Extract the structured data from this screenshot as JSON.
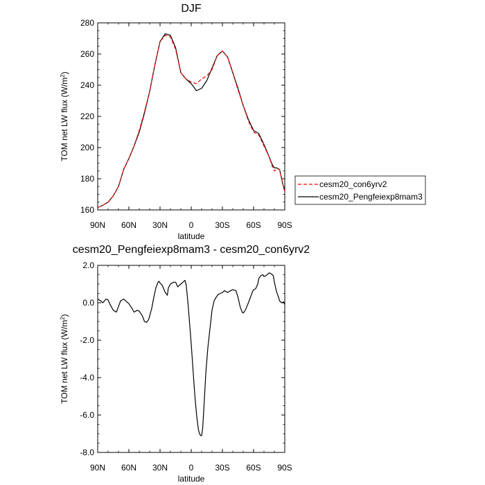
{
  "chart_data": [
    {
      "type": "line",
      "title": "DJF",
      "xlabel": "latitude",
      "ylabel": "TOM net LW flux (W/m",
      "ylabel_sup": "2",
      "ylabel_end": ")",
      "xlim": [
        -90,
        90
      ],
      "ylim": [
        160,
        280
      ],
      "x_ticks": [
        -90,
        -60,
        -30,
        0,
        30,
        60,
        90
      ],
      "x_tick_labels": [
        "90N",
        "60N",
        "30N",
        "0",
        "30S",
        "60S",
        "90S"
      ],
      "y_ticks": [
        160,
        180,
        200,
        220,
        240,
        260,
        280
      ],
      "y_tick_labels": [
        "160",
        "180",
        "200",
        "220",
        "240",
        "260",
        "280"
      ],
      "grid": false,
      "legend_position": "right",
      "series": [
        {
          "name": "cesm20_con6yrv2",
          "color": "#ff0000",
          "dash": "dashed",
          "x": [
            -90,
            -85,
            -80,
            -75,
            -70,
            -65,
            -60,
            -55,
            -50,
            -45,
            -40,
            -35,
            -30,
            -25,
            -20,
            -15,
            -10,
            -5,
            0,
            5,
            10,
            15,
            20,
            25,
            30,
            35,
            40,
            45,
            50,
            55,
            60,
            65,
            70,
            75,
            78,
            80,
            82,
            85,
            88,
            90
          ],
          "values": [
            161.5,
            163,
            165,
            169,
            175,
            186,
            193,
            201,
            211,
            223,
            236,
            253,
            268,
            272,
            271,
            263,
            248,
            244,
            242,
            241,
            244,
            246,
            250,
            259,
            262,
            258,
            248,
            237,
            227,
            217,
            210,
            208,
            201,
            194,
            188,
            185,
            186,
            186,
            177,
            172
          ]
        },
        {
          "name": "cesm20_Pengfeiexp8mam3",
          "color": "#000000",
          "dash": "solid",
          "x": [
            -90,
            -85,
            -80,
            -75,
            -70,
            -65,
            -60,
            -55,
            -50,
            -45,
            -40,
            -35,
            -30,
            -25,
            -20,
            -15,
            -10,
            -5,
            0,
            5,
            10,
            15,
            20,
            25,
            30,
            35,
            40,
            45,
            50,
            55,
            60,
            65,
            70,
            75,
            78,
            80,
            82,
            85,
            88,
            90
          ],
          "values": [
            161.5,
            163,
            165,
            169,
            175,
            186,
            193,
            201,
            210,
            222,
            236,
            253,
            268,
            273,
            272,
            264,
            248,
            244,
            241,
            236.5,
            238,
            243,
            251,
            259,
            262,
            258,
            248,
            238,
            227,
            218,
            211,
            209,
            202,
            194,
            189,
            187,
            187,
            186,
            177,
            172
          ]
        }
      ]
    },
    {
      "type": "line",
      "title": "cesm20_Pengfeiexp8mam3 - cesm20_con6yrv2",
      "xlabel": "latitude",
      "ylabel": "TOM net LW flux (W/m",
      "ylabel_sup": "2",
      "ylabel_end": ")",
      "xlim": [
        -90,
        90
      ],
      "ylim": [
        -8,
        2
      ],
      "x_ticks": [
        -90,
        -60,
        -30,
        0,
        30,
        60,
        90
      ],
      "x_tick_labels": [
        "90N",
        "60N",
        "30N",
        "0",
        "30S",
        "60S",
        "90S"
      ],
      "y_ticks": [
        -8,
        -6,
        -4,
        -2,
        0,
        2
      ],
      "y_tick_labels": [
        "-8.0",
        "-6.0",
        "-4.0",
        "-2.0",
        "0.0",
        "2.0"
      ],
      "grid": false,
      "series": [
        {
          "color": "#000000",
          "dash": "solid",
          "x": [
            -90,
            -87,
            -85,
            -82,
            -80,
            -78,
            -75,
            -72,
            -70,
            -68,
            -65,
            -62,
            -60,
            -57,
            -55,
            -52,
            -50,
            -47,
            -45,
            -43,
            -41,
            -38,
            -36,
            -34,
            -32,
            -31,
            -30,
            -28,
            -25,
            -23,
            -22,
            -20,
            -17,
            -15,
            -13,
            -10,
            -8,
            -6,
            -5,
            -4,
            -3,
            -2,
            -1,
            0,
            1,
            2,
            3,
            4,
            5,
            6,
            7,
            8,
            9,
            10,
            11,
            12,
            13,
            14,
            16,
            18,
            20,
            22,
            24,
            26,
            28,
            30,
            32,
            35,
            38,
            40,
            43,
            45,
            47,
            49,
            50,
            52,
            55,
            57,
            59,
            60,
            62,
            64,
            65,
            67,
            69,
            70,
            72,
            74,
            75,
            77,
            79,
            80,
            82,
            84,
            85,
            87,
            89,
            90
          ],
          "values": [
            0.2,
            0.1,
            0.0,
            0.2,
            0.15,
            -0.1,
            -0.4,
            -0.5,
            -0.2,
            0.1,
            0.2,
            0.05,
            -0.05,
            -0.3,
            -0.5,
            -0.4,
            -0.45,
            -0.7,
            -1.0,
            -1.05,
            -0.9,
            -0.3,
            0.3,
            0.8,
            1.1,
            1.15,
            1.05,
            0.95,
            0.55,
            0.4,
            0.8,
            1.0,
            1.1,
            1.1,
            0.85,
            1.0,
            1.1,
            1.2,
            1.0,
            0.5,
            -0.1,
            -0.8,
            -1.5,
            -2.2,
            -3.0,
            -3.8,
            -4.6,
            -5.3,
            -5.9,
            -6.4,
            -6.8,
            -7.0,
            -7.1,
            -7.1,
            -6.7,
            -5.8,
            -4.8,
            -3.8,
            -2.4,
            -1.4,
            -0.4,
            0.1,
            0.3,
            0.45,
            0.5,
            0.55,
            0.65,
            0.55,
            0.65,
            0.7,
            0.65,
            0.3,
            -0.2,
            -0.5,
            -0.55,
            -0.4,
            0.0,
            0.3,
            0.6,
            0.7,
            0.75,
            1.0,
            1.3,
            1.45,
            1.5,
            1.4,
            1.45,
            1.55,
            1.6,
            1.55,
            1.45,
            1.1,
            0.6,
            0.3,
            0.1,
            0.0,
            0.05,
            -0.1
          ]
        }
      ]
    }
  ]
}
